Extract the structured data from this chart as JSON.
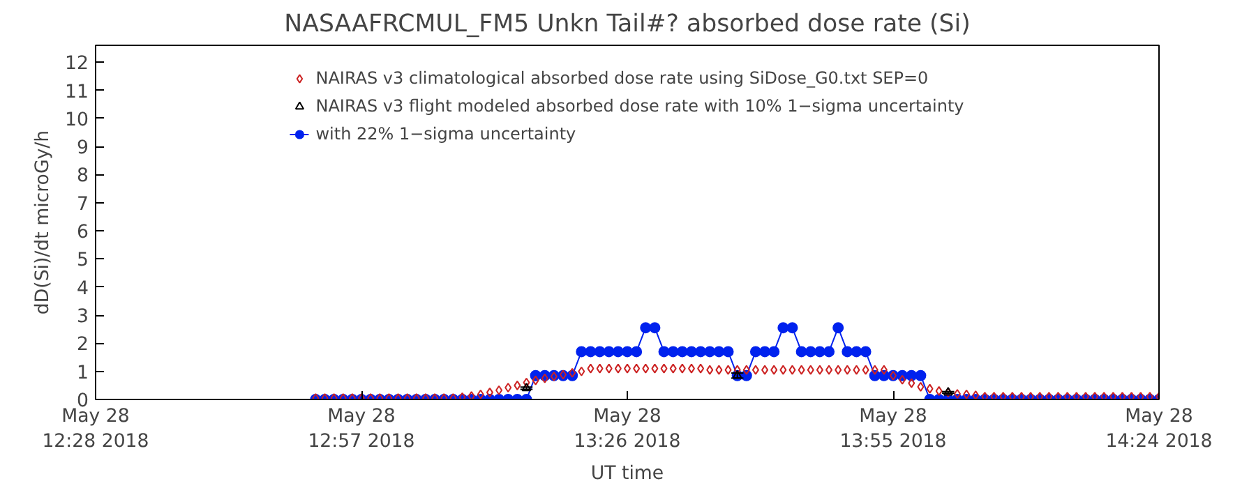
{
  "chart_data": {
    "type": "line",
    "title": "NASAAFRCMUL_FM5 Unkn Tail#? absorbed dose rate (Si)",
    "xlabel": "UT time",
    "ylabel": "dD(Si)/dt microGy/h",
    "x": [
      "2018-05-28T12:52",
      "2018-05-28T12:53",
      "2018-05-28T12:54",
      "2018-05-28T12:55",
      "2018-05-28T12:56",
      "2018-05-28T12:57",
      "2018-05-28T12:58",
      "2018-05-28T12:59",
      "2018-05-28T13:00",
      "2018-05-28T13:01",
      "2018-05-28T13:02",
      "2018-05-28T13:03",
      "2018-05-28T13:04",
      "2018-05-28T13:05",
      "2018-05-28T13:06",
      "2018-05-28T13:07",
      "2018-05-28T13:08",
      "2018-05-28T13:09",
      "2018-05-28T13:10",
      "2018-05-28T13:11",
      "2018-05-28T13:12",
      "2018-05-28T13:13",
      "2018-05-28T13:14",
      "2018-05-28T13:15",
      "2018-05-28T13:16",
      "2018-05-28T13:17",
      "2018-05-28T13:18",
      "2018-05-28T13:19",
      "2018-05-28T13:20",
      "2018-05-28T13:21",
      "2018-05-28T13:22",
      "2018-05-28T13:23",
      "2018-05-28T13:24",
      "2018-05-28T13:25",
      "2018-05-28T13:26",
      "2018-05-28T13:27",
      "2018-05-28T13:28",
      "2018-05-28T13:29",
      "2018-05-28T13:30",
      "2018-05-28T13:31",
      "2018-05-28T13:32",
      "2018-05-28T13:33",
      "2018-05-28T13:34",
      "2018-05-28T13:35",
      "2018-05-28T13:36",
      "2018-05-28T13:37",
      "2018-05-28T13:38",
      "2018-05-28T13:39",
      "2018-05-28T13:40",
      "2018-05-28T13:41",
      "2018-05-28T13:42",
      "2018-05-28T13:43",
      "2018-05-28T13:44",
      "2018-05-28T13:45",
      "2018-05-28T13:46",
      "2018-05-28T13:47",
      "2018-05-28T13:48",
      "2018-05-28T13:49",
      "2018-05-28T13:50",
      "2018-05-28T13:51",
      "2018-05-28T13:52",
      "2018-05-28T13:53",
      "2018-05-28T13:54",
      "2018-05-28T13:55",
      "2018-05-28T13:56",
      "2018-05-28T13:57",
      "2018-05-28T13:58",
      "2018-05-28T13:59",
      "2018-05-28T14:00",
      "2018-05-28T14:01",
      "2018-05-28T14:02",
      "2018-05-28T14:03",
      "2018-05-28T14:04",
      "2018-05-28T14:05",
      "2018-05-28T14:06",
      "2018-05-28T14:07",
      "2018-05-28T14:08",
      "2018-05-28T14:09",
      "2018-05-28T14:10",
      "2018-05-28T14:11",
      "2018-05-28T14:12",
      "2018-05-28T14:13",
      "2018-05-28T14:14",
      "2018-05-28T14:15",
      "2018-05-28T14:16",
      "2018-05-28T14:17",
      "2018-05-28T14:18",
      "2018-05-28T14:19",
      "2018-05-28T14:20",
      "2018-05-28T14:21",
      "2018-05-28T14:22",
      "2018-05-28T14:23",
      "2018-05-28T14:24"
    ],
    "series": [
      {
        "name": "NAIRAS v3 climatological absorbed dose rate using SiDose_G0.txt SEP=0",
        "type": "scatter",
        "marker": "diamond",
        "color": "#cc2222",
        "values": [
          0.05,
          0.05,
          0.05,
          0.05,
          0.05,
          0.05,
          0.05,
          0.05,
          0.05,
          0.05,
          0.05,
          0.05,
          0.05,
          0.05,
          0.05,
          0.05,
          0.08,
          0.12,
          0.18,
          0.25,
          0.33,
          0.42,
          0.5,
          0.6,
          0.68,
          0.75,
          0.82,
          0.88,
          0.95,
          1.0,
          1.1,
          1.1,
          1.1,
          1.1,
          1.1,
          1.1,
          1.1,
          1.1,
          1.1,
          1.1,
          1.1,
          1.1,
          1.1,
          1.05,
          1.05,
          1.05,
          1.05,
          1.05,
          1.05,
          1.05,
          1.05,
          1.05,
          1.05,
          1.05,
          1.05,
          1.05,
          1.05,
          1.05,
          1.05,
          1.05,
          1.05,
          1.05,
          1.05,
          0.85,
          0.7,
          0.58,
          0.45,
          0.38,
          0.3,
          0.25,
          0.2,
          0.18,
          0.15,
          0.1,
          0.1,
          0.1,
          0.1,
          0.1,
          0.1,
          0.1,
          0.1,
          0.1,
          0.1,
          0.1,
          0.1,
          0.1,
          0.1,
          0.1,
          0.1,
          0.1,
          0.1,
          0.1,
          0.1
        ]
      },
      {
        "name": "NAIRAS v3 flight modeled absorbed dose rate with 10% 1−sigma uncertainty",
        "type": "scatter",
        "marker": "triangle",
        "color": "#000000",
        "x": [
          "2018-05-28T13:15",
          "2018-05-28T13:38",
          "2018-05-28T14:01"
        ],
        "values": [
          0.4,
          0.85,
          0.25
        ],
        "errors": [
          0.04,
          0.09,
          0.03
        ]
      },
      {
        "name": "with 22% 1−sigma uncertainty",
        "marker": "circle",
        "color": "#0022ee",
        "values": [
          0,
          0,
          0,
          0,
          0,
          0,
          0,
          0,
          0,
          0,
          0,
          0,
          0,
          0,
          0,
          0,
          0,
          0,
          0,
          0,
          0,
          0,
          0,
          0,
          0.85,
          0.85,
          0.85,
          0.85,
          0.85,
          1.7,
          1.7,
          1.7,
          1.7,
          1.7,
          1.7,
          1.7,
          2.55,
          2.55,
          1.7,
          1.7,
          1.7,
          1.7,
          1.7,
          1.7,
          1.7,
          1.7,
          0.85,
          0.85,
          1.7,
          1.7,
          1.7,
          2.55,
          2.55,
          1.7,
          1.7,
          1.7,
          1.7,
          2.55,
          1.7,
          1.7,
          1.7,
          0.85,
          0.85,
          0.85,
          0.85,
          0.85,
          0.85,
          0,
          0,
          0,
          0,
          0,
          0,
          0,
          0,
          0,
          0,
          0,
          0,
          0,
          0,
          0,
          0,
          0,
          0,
          0,
          0,
          0,
          0,
          0,
          0,
          0,
          0
        ]
      }
    ],
    "xlim": [
      "2018-05-28T12:28",
      "2018-05-28T14:24"
    ],
    "xticks": [
      {
        "value": "2018-05-28T12:28",
        "label": "May 28\n12:28 2018"
      },
      {
        "value": "2018-05-28T12:57",
        "label": "May 28\n12:57 2018"
      },
      {
        "value": "2018-05-28T13:26",
        "label": "May 28\n13:26 2018"
      },
      {
        "value": "2018-05-28T13:55",
        "label": "May 28\n13:55 2018"
      },
      {
        "value": "2018-05-28T14:24",
        "label": "May 28\n14:24 2018"
      }
    ],
    "ylim": [
      0,
      12.6
    ],
    "yticks": [
      0,
      1,
      2,
      3,
      4,
      5,
      6,
      7,
      8,
      9,
      10,
      11,
      12
    ],
    "grid": false,
    "legend": "top"
  }
}
